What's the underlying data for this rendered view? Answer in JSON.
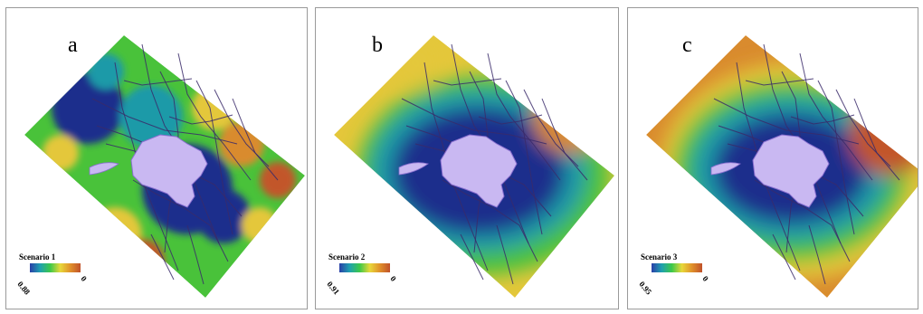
{
  "panels": [
    {
      "label": "a",
      "legend_title": "Scenario 1",
      "legend_min": "0.88",
      "legend_max": "0",
      "ramp": [
        "#2a3fa8",
        "#1fa0b0",
        "#3cc84a",
        "#e8d83a",
        "#e0902a",
        "#c0512a"
      ],
      "pattern": "patchy"
    },
    {
      "label": "b",
      "legend_title": "Scenario 2",
      "legend_min": "0.91",
      "legend_max": "0",
      "ramp": [
        "#2a3fa8",
        "#1fa0b0",
        "#3cc84a",
        "#e8d83a",
        "#e0902a",
        "#c0512a"
      ],
      "pattern": "halo"
    },
    {
      "label": "c",
      "legend_title": "Scenario 3",
      "legend_min": "0.95",
      "legend_max": "0",
      "ramp": [
        "#2a3fa8",
        "#1fa0b0",
        "#3cc84a",
        "#e8d83a",
        "#e0902a",
        "#c0512a"
      ],
      "pattern": "smooth"
    }
  ],
  "colors": {
    "lake": "#c9b8f2",
    "lake_edge": "#8a6fd0",
    "roads": "#3a2a6a",
    "deep": "#1e2f8c",
    "mid": "#1f9aa8",
    "green": "#49c23a",
    "yellow": "#e4c73a",
    "orange": "#d98b2e",
    "red": "#c2562a"
  }
}
